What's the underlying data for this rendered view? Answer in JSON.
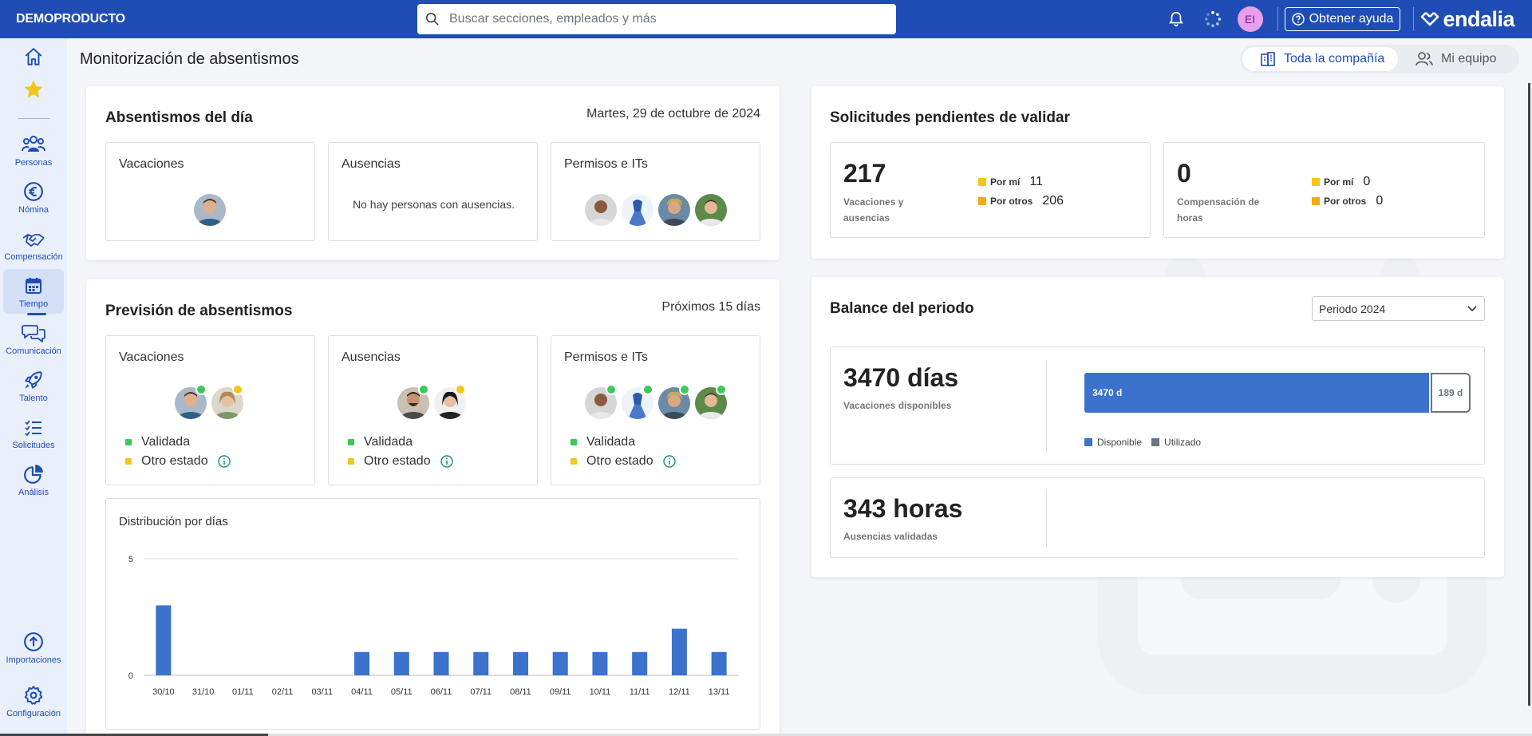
{
  "topbar": {
    "company": "DEMOPRODUCTO",
    "search_placeholder": "Buscar secciones, empleados y más",
    "avatar_initials": "EI",
    "help_label": "Obtener ayuda",
    "logo_text": "endalia"
  },
  "sidebar": {
    "items": [
      {
        "label": "",
        "icon": "home-icon"
      },
      {
        "label": "",
        "icon": "star-icon"
      },
      {
        "label": "Personas",
        "icon": "people-icon"
      },
      {
        "label": "Nómina",
        "icon": "euro-icon"
      },
      {
        "label": "Compensación",
        "icon": "handshake-icon"
      },
      {
        "label": "Tiempo",
        "icon": "calendar-icon"
      },
      {
        "label": "Comunicación",
        "icon": "chat-icon"
      },
      {
        "label": "Talento",
        "icon": "rocket-icon"
      },
      {
        "label": "Solicitudes",
        "icon": "checklist-icon"
      },
      {
        "label": "Análisis",
        "icon": "pie-icon"
      },
      {
        "label": "Importaciones",
        "icon": "upload-icon"
      },
      {
        "label": "Configuración",
        "icon": "gear-icon"
      }
    ],
    "active": "Tiempo"
  },
  "page": {
    "title": "Monitorización de absentismos",
    "scope_company": "Toda la compañía",
    "scope_team": "Mi equipo"
  },
  "today": {
    "title": "Absentismos del día",
    "date": "Martes, 29 de octubre de 2024",
    "vacaciones": "Vacaciones",
    "ausencias": "Ausencias",
    "ausencias_empty": "No hay personas con ausencias.",
    "permisos": "Permisos e ITs"
  },
  "forecast": {
    "title": "Previsión de absentismos",
    "range": "Próximos 15 días",
    "vacaciones": "Vacaciones",
    "ausencias": "Ausencias",
    "permisos": "Permisos e ITs",
    "legend_validated": "Validada",
    "legend_other": "Otro estado",
    "colors": {
      "validated": "#3cc85a",
      "other": "#f5c518"
    }
  },
  "distribution": {
    "title": "Distribución por días",
    "chart_data": {
      "type": "bar",
      "title": "Distribución por días",
      "categories": [
        "30/10",
        "31/10",
        "01/11",
        "02/11",
        "03/11",
        "04/11",
        "05/11",
        "06/11",
        "07/11",
        "08/11",
        "09/11",
        "10/11",
        "11/11",
        "12/11",
        "13/11"
      ],
      "values": [
        3,
        0,
        0,
        0,
        0,
        1,
        1,
        1,
        1,
        1,
        1,
        1,
        1,
        2,
        1
      ],
      "ylim": [
        0,
        5
      ],
      "yticks": [
        "0",
        "5"
      ],
      "grid": true,
      "color": "#3a72cc"
    }
  },
  "requests": {
    "title": "Solicitudes pendientes de validar",
    "vac_total": "217",
    "vac_label_1": "Vacaciones y",
    "vac_label_2": "ausencias",
    "vac_by_me_label": "Por mí",
    "vac_by_me": "11",
    "vac_by_others_label": "Por otros",
    "vac_by_others": "206",
    "comp_total": "0",
    "comp_label_1": "Compensación de",
    "comp_label_2": "horas",
    "comp_by_me_label": "Por mí",
    "comp_by_me": "0",
    "comp_by_others_label": "Por otros",
    "comp_by_others": "0",
    "colors": {
      "by_me": "#f5c518",
      "by_others": "#f5a623"
    }
  },
  "balance": {
    "title": "Balance del periodo",
    "period_selected": "Periodo 2024",
    "vac_value": "3470 días",
    "vac_label": "Vacaciones disponibles",
    "bar_available_label": "3470 d",
    "bar_used_label": "189 d",
    "bar_available": 3470,
    "bar_used": 189,
    "legend_available": "Disponible",
    "legend_used": "Utilizado",
    "colors": {
      "available": "#3a72cc",
      "used": "#6c757d"
    },
    "hours_value": "343 horas",
    "hours_label": "Ausencias validadas"
  }
}
